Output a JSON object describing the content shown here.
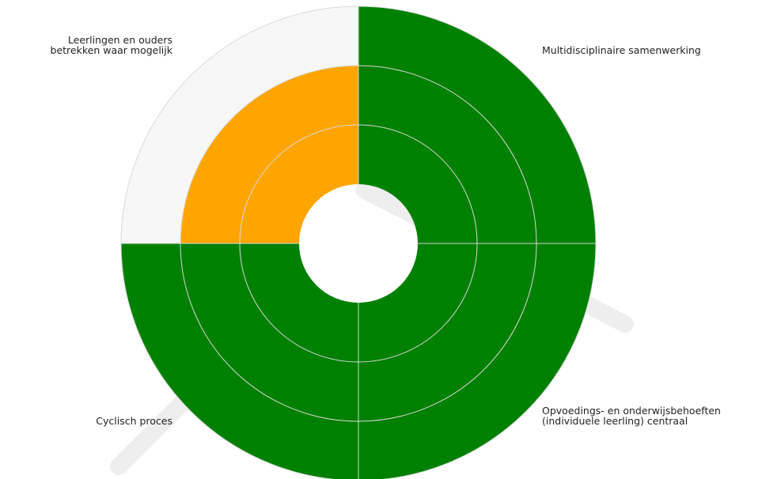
{
  "chart_data": {
    "type": "polar",
    "categories": [
      "Multidisciplinaire samenwerking",
      "Opvoedings- en onderwijsbehoeften\n(individuele leerling) centraal",
      "Cyclisch proces",
      "Leerlingen en ouders\nbetrekken waar mogelijk"
    ],
    "values": [
      3,
      3,
      3,
      2
    ],
    "colors": [
      "#008000",
      "#008000",
      "#008000",
      "#ffa500"
    ],
    "background": "#f7f7f7",
    "rlim": [
      0,
      3
    ],
    "rticks": [
      1,
      2,
      3
    ],
    "grid": true
  }
}
